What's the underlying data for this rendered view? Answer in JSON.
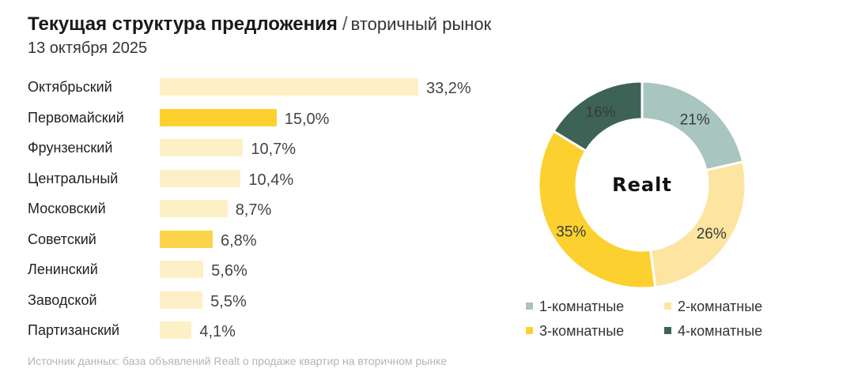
{
  "header": {
    "title": "Текущая структура предложения",
    "separator": "/",
    "subtitle": "вторичный рынок",
    "date": "13 октября 2025"
  },
  "chart_data": [
    {
      "type": "bar",
      "orientation": "horizontal",
      "categories": [
        "Октябрьский",
        "Первомайский",
        "Фрунзенский",
        "Центральный",
        "Московский",
        "Советский",
        "Ленинский",
        "Заводской",
        "Партизанский"
      ],
      "values": [
        33.2,
        15.0,
        10.7,
        10.4,
        8.7,
        6.8,
        5.6,
        5.5,
        4.1
      ],
      "value_labels": [
        "33,2%",
        "15,0%",
        "10,7%",
        "10,4%",
        "8,7%",
        "6,8%",
        "5,6%",
        "5,5%",
        "4,1%"
      ],
      "colors": [
        "#fdf0c6",
        "#fcd12f",
        "#fdf0c6",
        "#fdf0c6",
        "#fdf0c6",
        "#fcd44a",
        "#fdf0c6",
        "#fdf0c6",
        "#fdf0c6"
      ],
      "xlim": [
        0,
        33.2
      ]
    },
    {
      "type": "pie",
      "style": "donut",
      "center_label": "Realt",
      "categories": [
        "1-комнатные",
        "2-комнатные",
        "3-комнатные",
        "4-комнатные"
      ],
      "values": [
        21,
        26,
        35,
        16
      ],
      "value_labels": [
        "21%",
        "26%",
        "35%",
        "16%"
      ],
      "colors": [
        "#a8c5c0",
        "#fde4a0",
        "#fcd12f",
        "#3d6356"
      ],
      "legend_placement": "bottom"
    }
  ],
  "source": "Источник данных: база объявлений Realt о продаже квартир на вторичном рынке"
}
